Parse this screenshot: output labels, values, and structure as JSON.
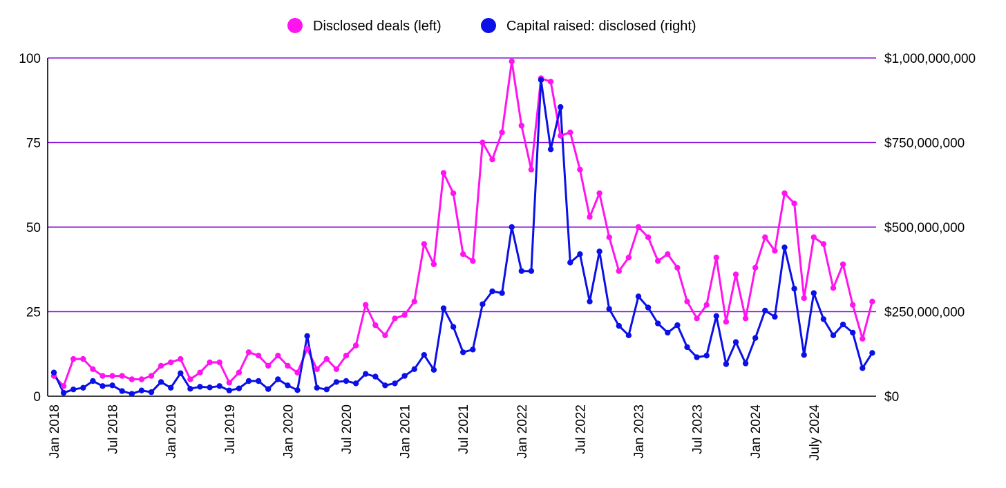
{
  "colors": {
    "deals": "#ff14f0",
    "capital": "#0a10e6",
    "grid": "#8a12d8",
    "axis": "#000000"
  },
  "chart_data": {
    "type": "line",
    "grid": true,
    "legend_position": "top-center",
    "x_start": "2018-01",
    "x_ticks": [
      "Jan 2018",
      "Jul 2018",
      "Jan 2019",
      "Jul 2019",
      "Jan 2020",
      "Jul 2020",
      "Jan 2021",
      "Jul 2021",
      "Jan 2022",
      "Jul 2022",
      "Jan 2023",
      "Jul 2023",
      "Jan 2024",
      "July 2024"
    ],
    "y_left": {
      "ticks": [
        "0",
        "25",
        "50",
        "75",
        "100"
      ],
      "range": [
        0,
        100
      ]
    },
    "y_right": {
      "ticks": [
        "$0",
        "$250,000,000",
        "$500,000,000",
        "$750,000,000",
        "$1,000,000,000"
      ],
      "range": [
        0,
        1000000000
      ]
    },
    "series": [
      {
        "name": "Disclosed deals (left)",
        "axis": "left",
        "values": [
          6,
          3,
          11,
          11,
          8,
          6,
          6,
          6,
          5,
          5,
          6,
          9,
          10,
          11,
          5,
          7,
          10,
          10,
          4,
          7,
          13,
          12,
          9,
          12,
          9,
          7,
          14,
          8,
          11,
          8,
          12,
          15,
          27,
          21,
          18,
          23,
          24,
          28,
          45,
          39,
          66,
          60,
          42,
          40,
          75,
          70,
          78,
          99,
          80,
          67,
          94,
          93,
          77,
          78,
          67,
          53,
          60,
          47,
          37,
          41,
          50,
          47,
          40,
          42,
          38,
          28,
          23,
          27,
          41,
          22,
          36,
          23,
          38,
          47,
          43,
          60,
          57,
          29,
          47,
          45,
          32,
          39,
          27,
          17,
          28
        ]
      },
      {
        "name": "Capital raised: disclosed (right)",
        "axis": "right",
        "values": [
          70000000,
          10000000,
          20000000,
          25000000,
          45000000,
          30000000,
          32000000,
          15000000,
          7000000,
          17000000,
          12000000,
          42000000,
          25000000,
          68000000,
          22000000,
          28000000,
          26000000,
          30000000,
          17000000,
          23000000,
          45000000,
          45000000,
          21000000,
          50000000,
          32000000,
          18000000,
          178000000,
          25000000,
          20000000,
          42000000,
          45000000,
          38000000,
          66000000,
          58000000,
          32000000,
          38000000,
          60000000,
          80000000,
          122000000,
          78000000,
          260000000,
          205000000,
          130000000,
          138000000,
          272000000,
          310000000,
          305000000,
          500000000,
          370000000,
          370000000,
          935000000,
          730000000,
          855000000,
          395000000,
          420000000,
          280000000,
          428000000,
          258000000,
          208000000,
          180000000,
          295000000,
          262000000,
          215000000,
          188000000,
          210000000,
          145000000,
          115000000,
          120000000,
          237000000,
          95000000,
          160000000,
          97000000,
          172000000,
          253000000,
          235000000,
          440000000,
          318000000,
          122000000,
          305000000,
          228000000,
          180000000,
          212000000,
          188000000,
          83000000,
          128000000
        ]
      }
    ]
  }
}
